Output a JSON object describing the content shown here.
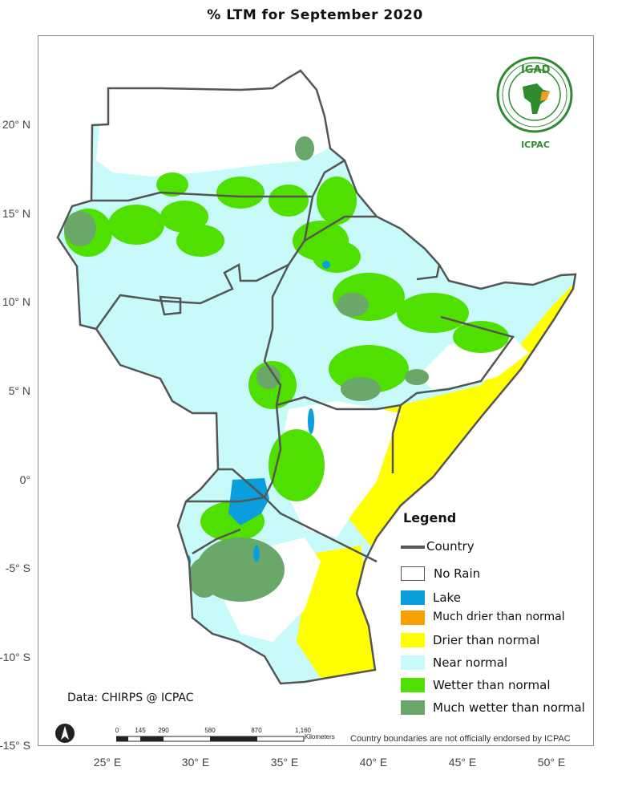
{
  "title": "% LTM  for  September 2020",
  "latitude_labels": [
    "20° N",
    "15° N",
    "10° N",
    "5° N",
    "0°",
    "-5° S",
    "-10° S",
    "-15° S"
  ],
  "longitude_labels": [
    "25° E",
    "30° E",
    "35° E",
    "40° E",
    "45° E",
    "50° E"
  ],
  "legend": {
    "title": "Legend",
    "country": "Country",
    "items": [
      {
        "label": "No Rain",
        "color": "#ffffff"
      },
      {
        "label": "Lake",
        "color": "#0a9fdc"
      },
      {
        "label": "Much drier than normal",
        "color": "#f5a000"
      },
      {
        "label": "Drier than normal",
        "color": "#ffff00"
      },
      {
        "label": "Near normal",
        "color": "#c8fafa"
      },
      {
        "label": "Wetter than normal",
        "color": "#4fe000"
      },
      {
        "label": "Much wetter than normal",
        "color": "#6aa86a"
      }
    ]
  },
  "credit": "Data: CHIRPS @ ICPAC",
  "disclaimer": "Country boundaries are not officially endorsed by ICPAC",
  "scale_bar": {
    "ticks": [
      "0",
      "145",
      "290",
      "580",
      "870",
      "1,160"
    ],
    "units": "Kilometers"
  },
  "logo": {
    "acronym": "IGAD",
    "name": "ICPAC"
  },
  "colors": {
    "country_border": "#555555",
    "near_normal": "#c8fafa",
    "wetter": "#4fe000",
    "much_wetter": "#6aa86a",
    "drier": "#ffff00",
    "lake": "#0a9fdc"
  }
}
